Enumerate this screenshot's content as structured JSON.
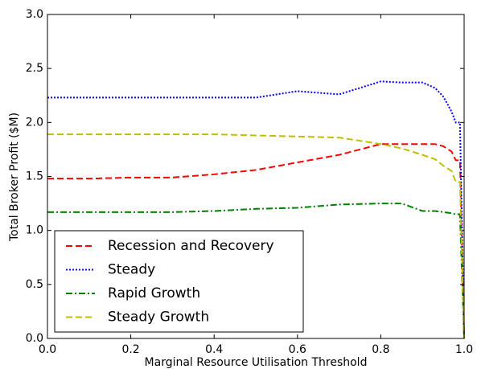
{
  "chart_data": {
    "type": "line",
    "xlabel": "Marginal Resource Utilisation Threshold",
    "ylabel": "Total Broker Profit ($M)",
    "x": [
      0,
      0.1,
      0.2,
      0.3,
      0.4,
      0.5,
      0.6,
      0.7,
      0.8,
      0.85,
      0.9,
      0.93,
      0.95,
      0.97,
      0.98,
      0.99,
      1.0
    ],
    "series": [
      {
        "name": "Recession and Recovery",
        "color": "#ff0000",
        "dash": "dashed",
        "values": [
          1.48,
          1.48,
          1.49,
          1.49,
          1.52,
          1.56,
          1.63,
          1.7,
          1.8,
          1.8,
          1.8,
          1.8,
          1.78,
          1.73,
          1.65,
          1.65,
          0
        ]
      },
      {
        "name": "Steady",
        "color": "#0000ff",
        "dash": "dotted",
        "values": [
          2.23,
          2.23,
          2.23,
          2.23,
          2.23,
          2.23,
          2.29,
          2.26,
          2.38,
          2.37,
          2.37,
          2.32,
          2.24,
          2.1,
          2.0,
          2.0,
          0
        ]
      },
      {
        "name": "Rapid Growth",
        "color": "#008000",
        "dash": "dashdot",
        "values": [
          1.17,
          1.17,
          1.17,
          1.17,
          1.18,
          1.2,
          1.21,
          1.24,
          1.25,
          1.25,
          1.18,
          1.18,
          1.17,
          1.16,
          1.15,
          1.15,
          0
        ]
      },
      {
        "name": "Steady Growth",
        "color": "#bfbf00",
        "dash": "dashed",
        "values": [
          1.89,
          1.89,
          1.89,
          1.89,
          1.89,
          1.88,
          1.87,
          1.86,
          1.8,
          1.76,
          1.7,
          1.66,
          1.6,
          1.55,
          1.45,
          1.45,
          0
        ]
      }
    ],
    "xlim": [
      0,
      1.0
    ],
    "xticks": [
      {
        "value": 0,
        "label": "0.0"
      },
      0.2,
      0.4,
      0.6,
      0.8,
      {
        "value": 1.0,
        "label": "1.0"
      }
    ],
    "ylim": [
      0,
      3.0
    ],
    "yticks": [
      {
        "value": 0,
        "label": "0.0"
      },
      0.5,
      {
        "value": 1.0,
        "label": "1.0"
      },
      1.5,
      {
        "value": 2.0,
        "label": "2.0"
      },
      2.5,
      {
        "value": 3.0,
        "label": "3.0"
      }
    ],
    "legend": "lower left",
    "grid": false
  }
}
